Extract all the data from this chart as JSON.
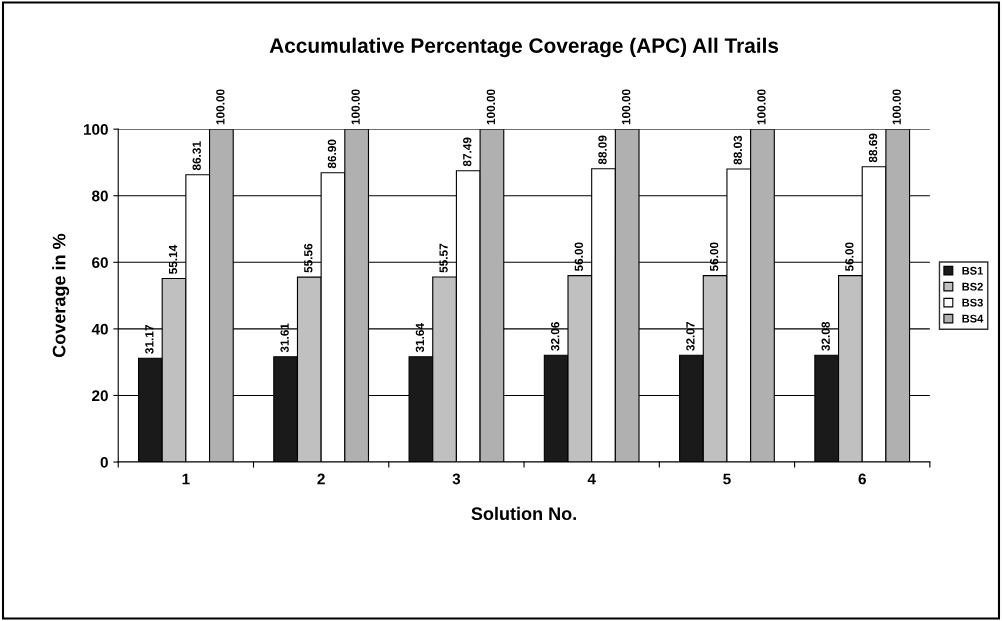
{
  "chart_data": {
    "type": "bar",
    "title": "Accumulative Percentage Coverage (APC) All Trails",
    "xlabel": "Solution No.",
    "ylabel": "Coverage in %",
    "categories": [
      "1",
      "2",
      "3",
      "4",
      "5",
      "6"
    ],
    "series": [
      {
        "name": "BS1",
        "color": "#1a1a1a",
        "values": [
          31.17,
          31.61,
          31.64,
          32.06,
          32.07,
          32.08
        ],
        "value_labels": [
          "31.17",
          "31.61",
          "31.64",
          "32.06",
          "32.07",
          "32.08"
        ]
      },
      {
        "name": "BS2",
        "color": "#c0c0c0",
        "values": [
          55.14,
          55.56,
          55.57,
          56.0,
          56.0,
          56.0
        ],
        "value_labels": [
          "55.14",
          "55.56",
          "55.57",
          "56.00",
          "56.00",
          "56.00"
        ]
      },
      {
        "name": "BS3",
        "color": "#ffffff",
        "values": [
          86.31,
          86.9,
          87.49,
          88.09,
          88.03,
          88.69
        ],
        "value_labels": [
          "86.31",
          "86.90",
          "87.49",
          "88.09",
          "88.03",
          "88.69"
        ]
      },
      {
        "name": "BS4",
        "color": "#b0b0b0",
        "values": [
          100,
          100,
          100,
          100,
          100,
          100
        ],
        "value_labels": [
          "100.00",
          "100.00",
          "100.00",
          "100.00",
          "100.00",
          "100.00"
        ]
      }
    ],
    "ylim": [
      0,
      100
    ],
    "yticks": [
      0,
      20,
      40,
      60,
      80,
      100
    ],
    "grid": "y",
    "legend": "right"
  }
}
